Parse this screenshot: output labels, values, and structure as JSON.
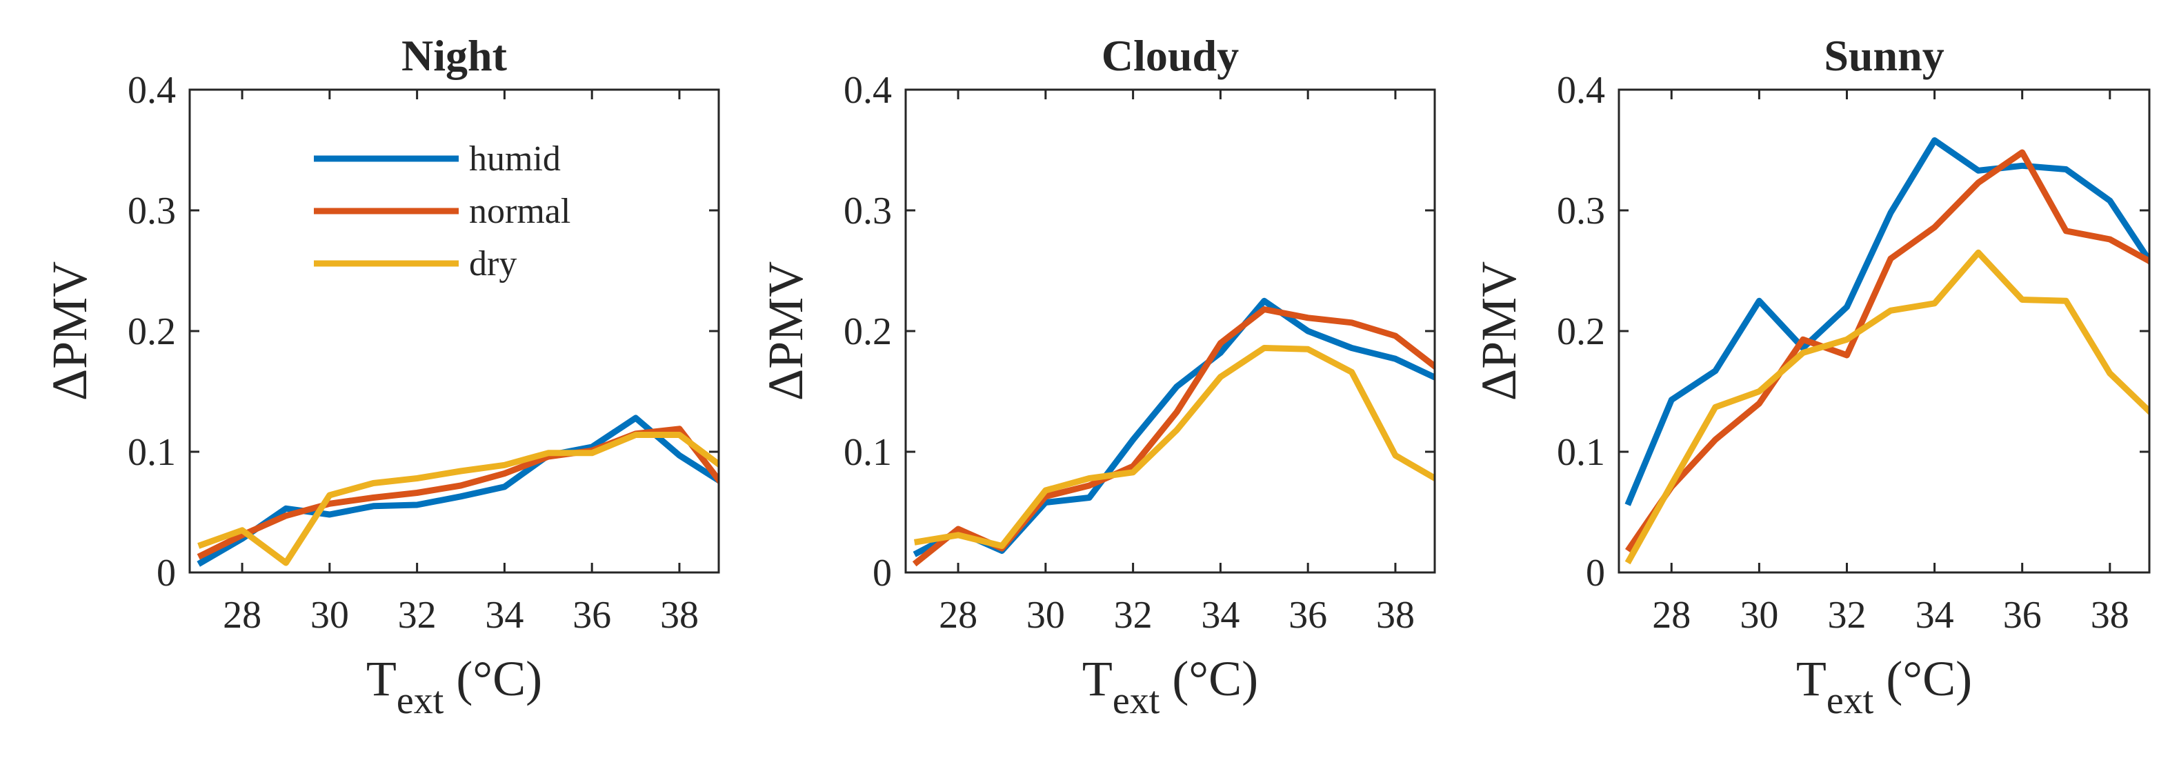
{
  "colors": {
    "humid": "#0072BD",
    "normal": "#D95319",
    "dry": "#EDB120",
    "axis": "#262626"
  },
  "chart_data": [
    {
      "type": "line",
      "title": "Night",
      "xlabel": {
        "main": "T",
        "sub": "ext",
        "unit": "(°C)"
      },
      "ylabel": "ΔPMV",
      "xlim": [
        26.8,
        38.9
      ],
      "ylim": [
        0,
        0.4
      ],
      "xticks": [
        28,
        30,
        32,
        34,
        36,
        38
      ],
      "yticks": [
        0,
        0.1,
        0.2,
        0.3,
        0.4
      ],
      "x": [
        27,
        28,
        29,
        30,
        31,
        32,
        33,
        34,
        35,
        36,
        37,
        38,
        39
      ],
      "series": [
        {
          "name": "humid",
          "values": [
            0.007,
            0.028,
            0.053,
            0.048,
            0.055,
            0.056,
            0.063,
            0.071,
            0.097,
            0.104,
            0.128,
            0.097,
            0.074
          ]
        },
        {
          "name": "normal",
          "values": [
            0.013,
            0.031,
            0.047,
            0.057,
            0.062,
            0.066,
            0.072,
            0.082,
            0.096,
            0.101,
            0.115,
            0.119,
            0.072
          ]
        },
        {
          "name": "dry",
          "values": [
            0.022,
            0.035,
            0.008,
            0.064,
            0.074,
            0.078,
            0.084,
            0.089,
            0.099,
            0.099,
            0.114,
            0.114,
            0.087
          ]
        }
      ],
      "legend": {
        "location": "upper-left",
        "entries": [
          "humid",
          "normal",
          "dry"
        ]
      }
    },
    {
      "type": "line",
      "title": "Cloudy",
      "xlabel": {
        "main": "T",
        "sub": "ext",
        "unit": "(°C)"
      },
      "ylabel": "ΔPMV",
      "xlim": [
        26.8,
        38.9
      ],
      "ylim": [
        0,
        0.4
      ],
      "xticks": [
        28,
        30,
        32,
        34,
        36,
        38
      ],
      "yticks": [
        0,
        0.1,
        0.2,
        0.3,
        0.4
      ],
      "x": [
        27,
        28,
        29,
        30,
        31,
        32,
        33,
        34,
        35,
        36,
        37,
        38,
        39
      ],
      "series": [
        {
          "name": "humid",
          "values": [
            0.015,
            0.034,
            0.018,
            0.058,
            0.062,
            0.11,
            0.154,
            0.182,
            0.225,
            0.2,
            0.186,
            0.177,
            0.16
          ]
        },
        {
          "name": "normal",
          "values": [
            0.007,
            0.036,
            0.02,
            0.063,
            0.072,
            0.088,
            0.133,
            0.19,
            0.218,
            0.211,
            0.207,
            0.196,
            0.168
          ]
        },
        {
          "name": "dry",
          "values": [
            0.025,
            0.031,
            0.022,
            0.068,
            0.078,
            0.083,
            0.118,
            0.162,
            0.186,
            0.185,
            0.166,
            0.097,
            0.076
          ]
        }
      ]
    },
    {
      "type": "line",
      "title": "Sunny",
      "xlabel": {
        "main": "T",
        "sub": "ext",
        "unit": "(°C)"
      },
      "ylabel": "ΔPMV",
      "xlim": [
        26.8,
        38.9
      ],
      "ylim": [
        0,
        0.4
      ],
      "xticks": [
        28,
        30,
        32,
        34,
        36,
        38
      ],
      "yticks": [
        0,
        0.1,
        0.2,
        0.3,
        0.4
      ],
      "x": [
        27,
        28,
        29,
        30,
        31,
        32,
        33,
        34,
        35,
        36,
        37,
        38,
        39
      ],
      "series": [
        {
          "name": "humid",
          "values": [
            0.056,
            0.143,
            0.167,
            0.225,
            0.186,
            0.22,
            0.298,
            0.358,
            0.333,
            0.337,
            0.334,
            0.308,
            0.253
          ]
        },
        {
          "name": "normal",
          "values": [
            0.018,
            0.071,
            0.11,
            0.14,
            0.193,
            0.18,
            0.26,
            0.286,
            0.323,
            0.348,
            0.283,
            0.276,
            0.256
          ]
        },
        {
          "name": "dry",
          "values": [
            0.008,
            0.073,
            0.137,
            0.15,
            0.182,
            0.193,
            0.217,
            0.223,
            0.265,
            0.226,
            0.225,
            0.165,
            0.13
          ]
        }
      ]
    }
  ]
}
